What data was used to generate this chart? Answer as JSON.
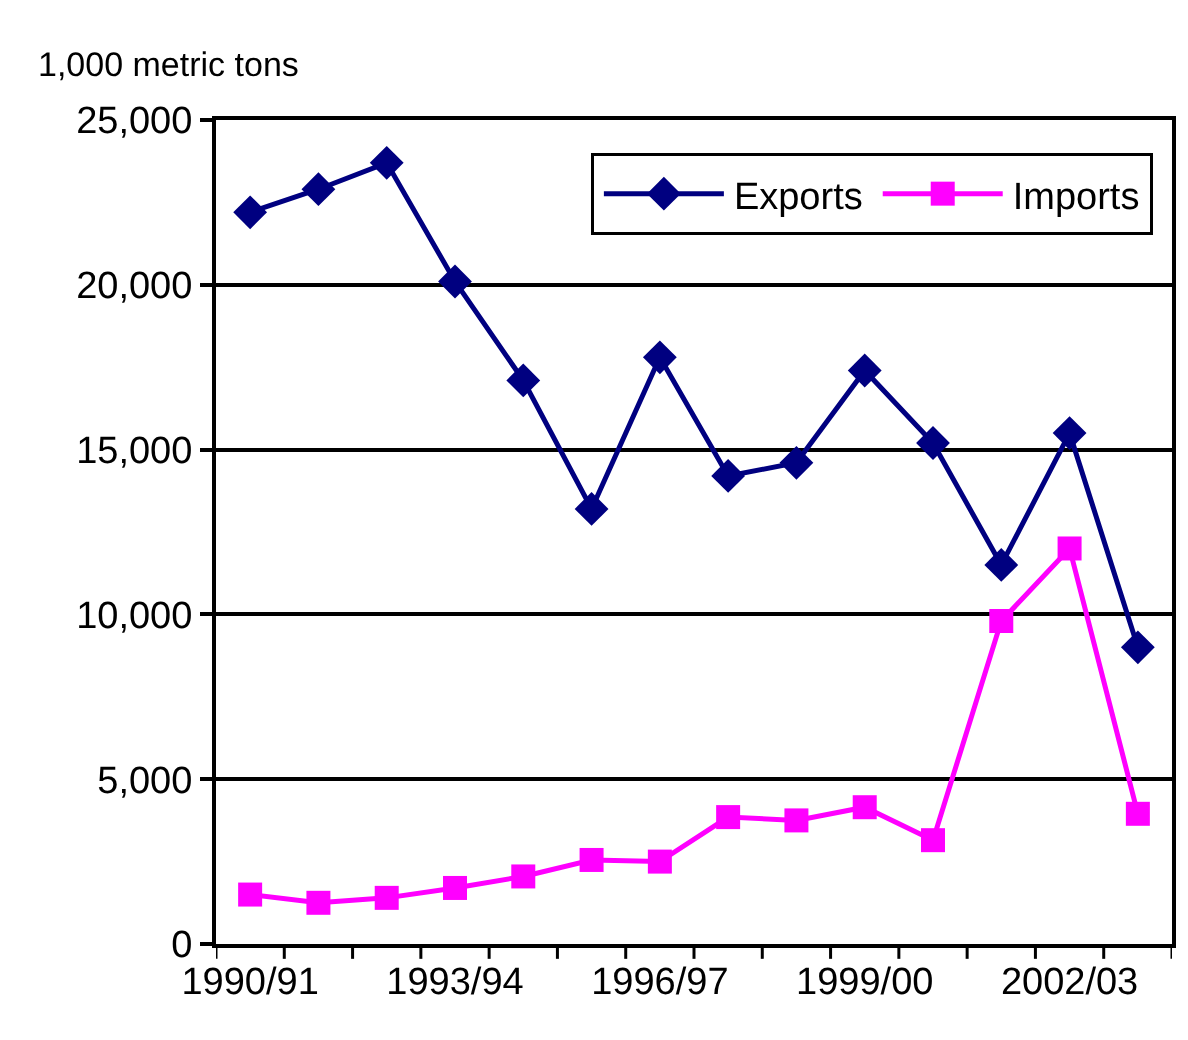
{
  "chart_data": {
    "type": "line",
    "ylabel": "1,000 metric tons",
    "categories": [
      "1990/91",
      null,
      null,
      "1993/94",
      null,
      null,
      "1996/97",
      null,
      null,
      "1999/00",
      null,
      null,
      "2002/03",
      null
    ],
    "series": [
      {
        "name": "Exports",
        "color": "#000080",
        "marker": "diamond",
        "values": [
          22200,
          22900,
          23700,
          20100,
          17100,
          13200,
          17800,
          14200,
          14600,
          17400,
          15200,
          11500,
          15500,
          9000
        ]
      },
      {
        "name": "Imports",
        "color": "#ff00ff",
        "marker": "square",
        "values": [
          1500,
          1250,
          1400,
          1700,
          2050,
          2550,
          2500,
          3850,
          3750,
          4150,
          3150,
          9800,
          12000,
          3950
        ]
      }
    ],
    "ylim": [
      0,
      25000
    ],
    "yticks": [
      {
        "value": 0,
        "label": "0"
      },
      {
        "value": 5000,
        "label": "5,000"
      },
      {
        "value": 10000,
        "label": "10,000"
      },
      {
        "value": 15000,
        "label": "15,000"
      },
      {
        "value": 20000,
        "label": "20,000"
      },
      {
        "value": 25000,
        "label": "25,000"
      }
    ],
    "grid": "y",
    "legend": "top right",
    "line_style": "solid"
  }
}
